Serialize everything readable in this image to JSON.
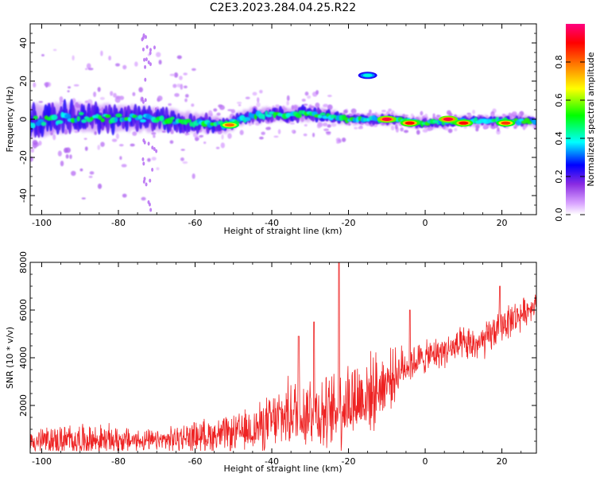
{
  "title": "C2E3.2023.284.04.25.R22",
  "chart_data": [
    {
      "type": "heatmap",
      "xlabel": "Height of straight line (km)",
      "ylabel": "Frequency (Hz)",
      "xlim": [
        -103,
        29
      ],
      "ylim": [
        -50,
        50
      ],
      "xticks": [
        -100,
        -80,
        -60,
        -40,
        -20,
        0,
        20
      ],
      "yticks": [
        -40,
        -20,
        0,
        20,
        40
      ],
      "grid": false,
      "colorbar": {
        "label": "Normalized spectral amplitude",
        "range": [
          0.0,
          1.0
        ],
        "ticks": [
          0.0,
          0.2,
          0.4,
          0.6,
          0.8
        ],
        "colormap": [
          "#ffffff",
          "#d9a3ff",
          "#8a2be2",
          "#0000ff",
          "#00ffff",
          "#00ff00",
          "#ffff00",
          "#ff8000",
          "#ff0000",
          "#ff0080"
        ]
      },
      "band": {
        "description_points_x": [
          -103,
          -90,
          -70,
          -52,
          -45,
          -30,
          -20,
          -10,
          0,
          10,
          20,
          29
        ],
        "center_freq": [
          -1,
          1,
          0,
          -3,
          2,
          3,
          0,
          0,
          -2,
          -1,
          -1,
          -1
        ],
        "half_width": [
          7,
          6,
          5,
          3,
          3,
          3,
          2,
          2,
          2,
          2,
          2,
          2
        ]
      },
      "hotspots": [
        {
          "x": -10,
          "y": 0,
          "v": 0.95
        },
        {
          "x": -4,
          "y": -2,
          "v": 0.9
        },
        {
          "x": 6,
          "y": 0,
          "v": 0.95
        },
        {
          "x": 10,
          "y": -2,
          "v": 0.9
        },
        {
          "x": 21,
          "y": -2,
          "v": 0.85
        },
        {
          "x": -51,
          "y": -3,
          "v": 0.8
        },
        {
          "x": -15,
          "y": 23,
          "v": 0.4
        }
      ]
    },
    {
      "type": "line",
      "xlabel": "Height of straight line (km)",
      "ylabel": "SNR (10 * v/v)",
      "xlim": [
        -103,
        29
      ],
      "ylim": [
        0,
        8000
      ],
      "xticks": [
        -100,
        -80,
        -60,
        -40,
        -20,
        0,
        20
      ],
      "yticks": [
        2000,
        4000,
        6000,
        8000
      ],
      "grid": false,
      "color": "#ee2222",
      "trend_x": [
        -103,
        -90,
        -80,
        -70,
        -60,
        -50,
        -45,
        -40,
        -35,
        -30,
        -25,
        -22,
        -20,
        -15,
        -10,
        -5,
        0,
        5,
        10,
        15,
        20,
        25,
        29
      ],
      "trend_y": [
        500,
        550,
        550,
        500,
        700,
        800,
        1000,
        1300,
        1700,
        1800,
        1600,
        2000,
        2200,
        2400,
        3000,
        3700,
        4000,
        4300,
        4500,
        4600,
        5400,
        5800,
        6300
      ],
      "spread": [
        700,
        800,
        700,
        500,
        800,
        900,
        1100,
        1400,
        1700,
        2000,
        1800,
        2200,
        2200,
        2000,
        1500,
        1000,
        800,
        800,
        900,
        900,
        900,
        800,
        500
      ],
      "peaks": [
        {
          "x": -22.5,
          "y": 8000
        },
        {
          "x": -33,
          "y": 4900
        },
        {
          "x": -29,
          "y": 5500
        },
        {
          "x": 19.5,
          "y": 7000
        },
        {
          "x": -4,
          "y": 6000
        }
      ]
    }
  ]
}
